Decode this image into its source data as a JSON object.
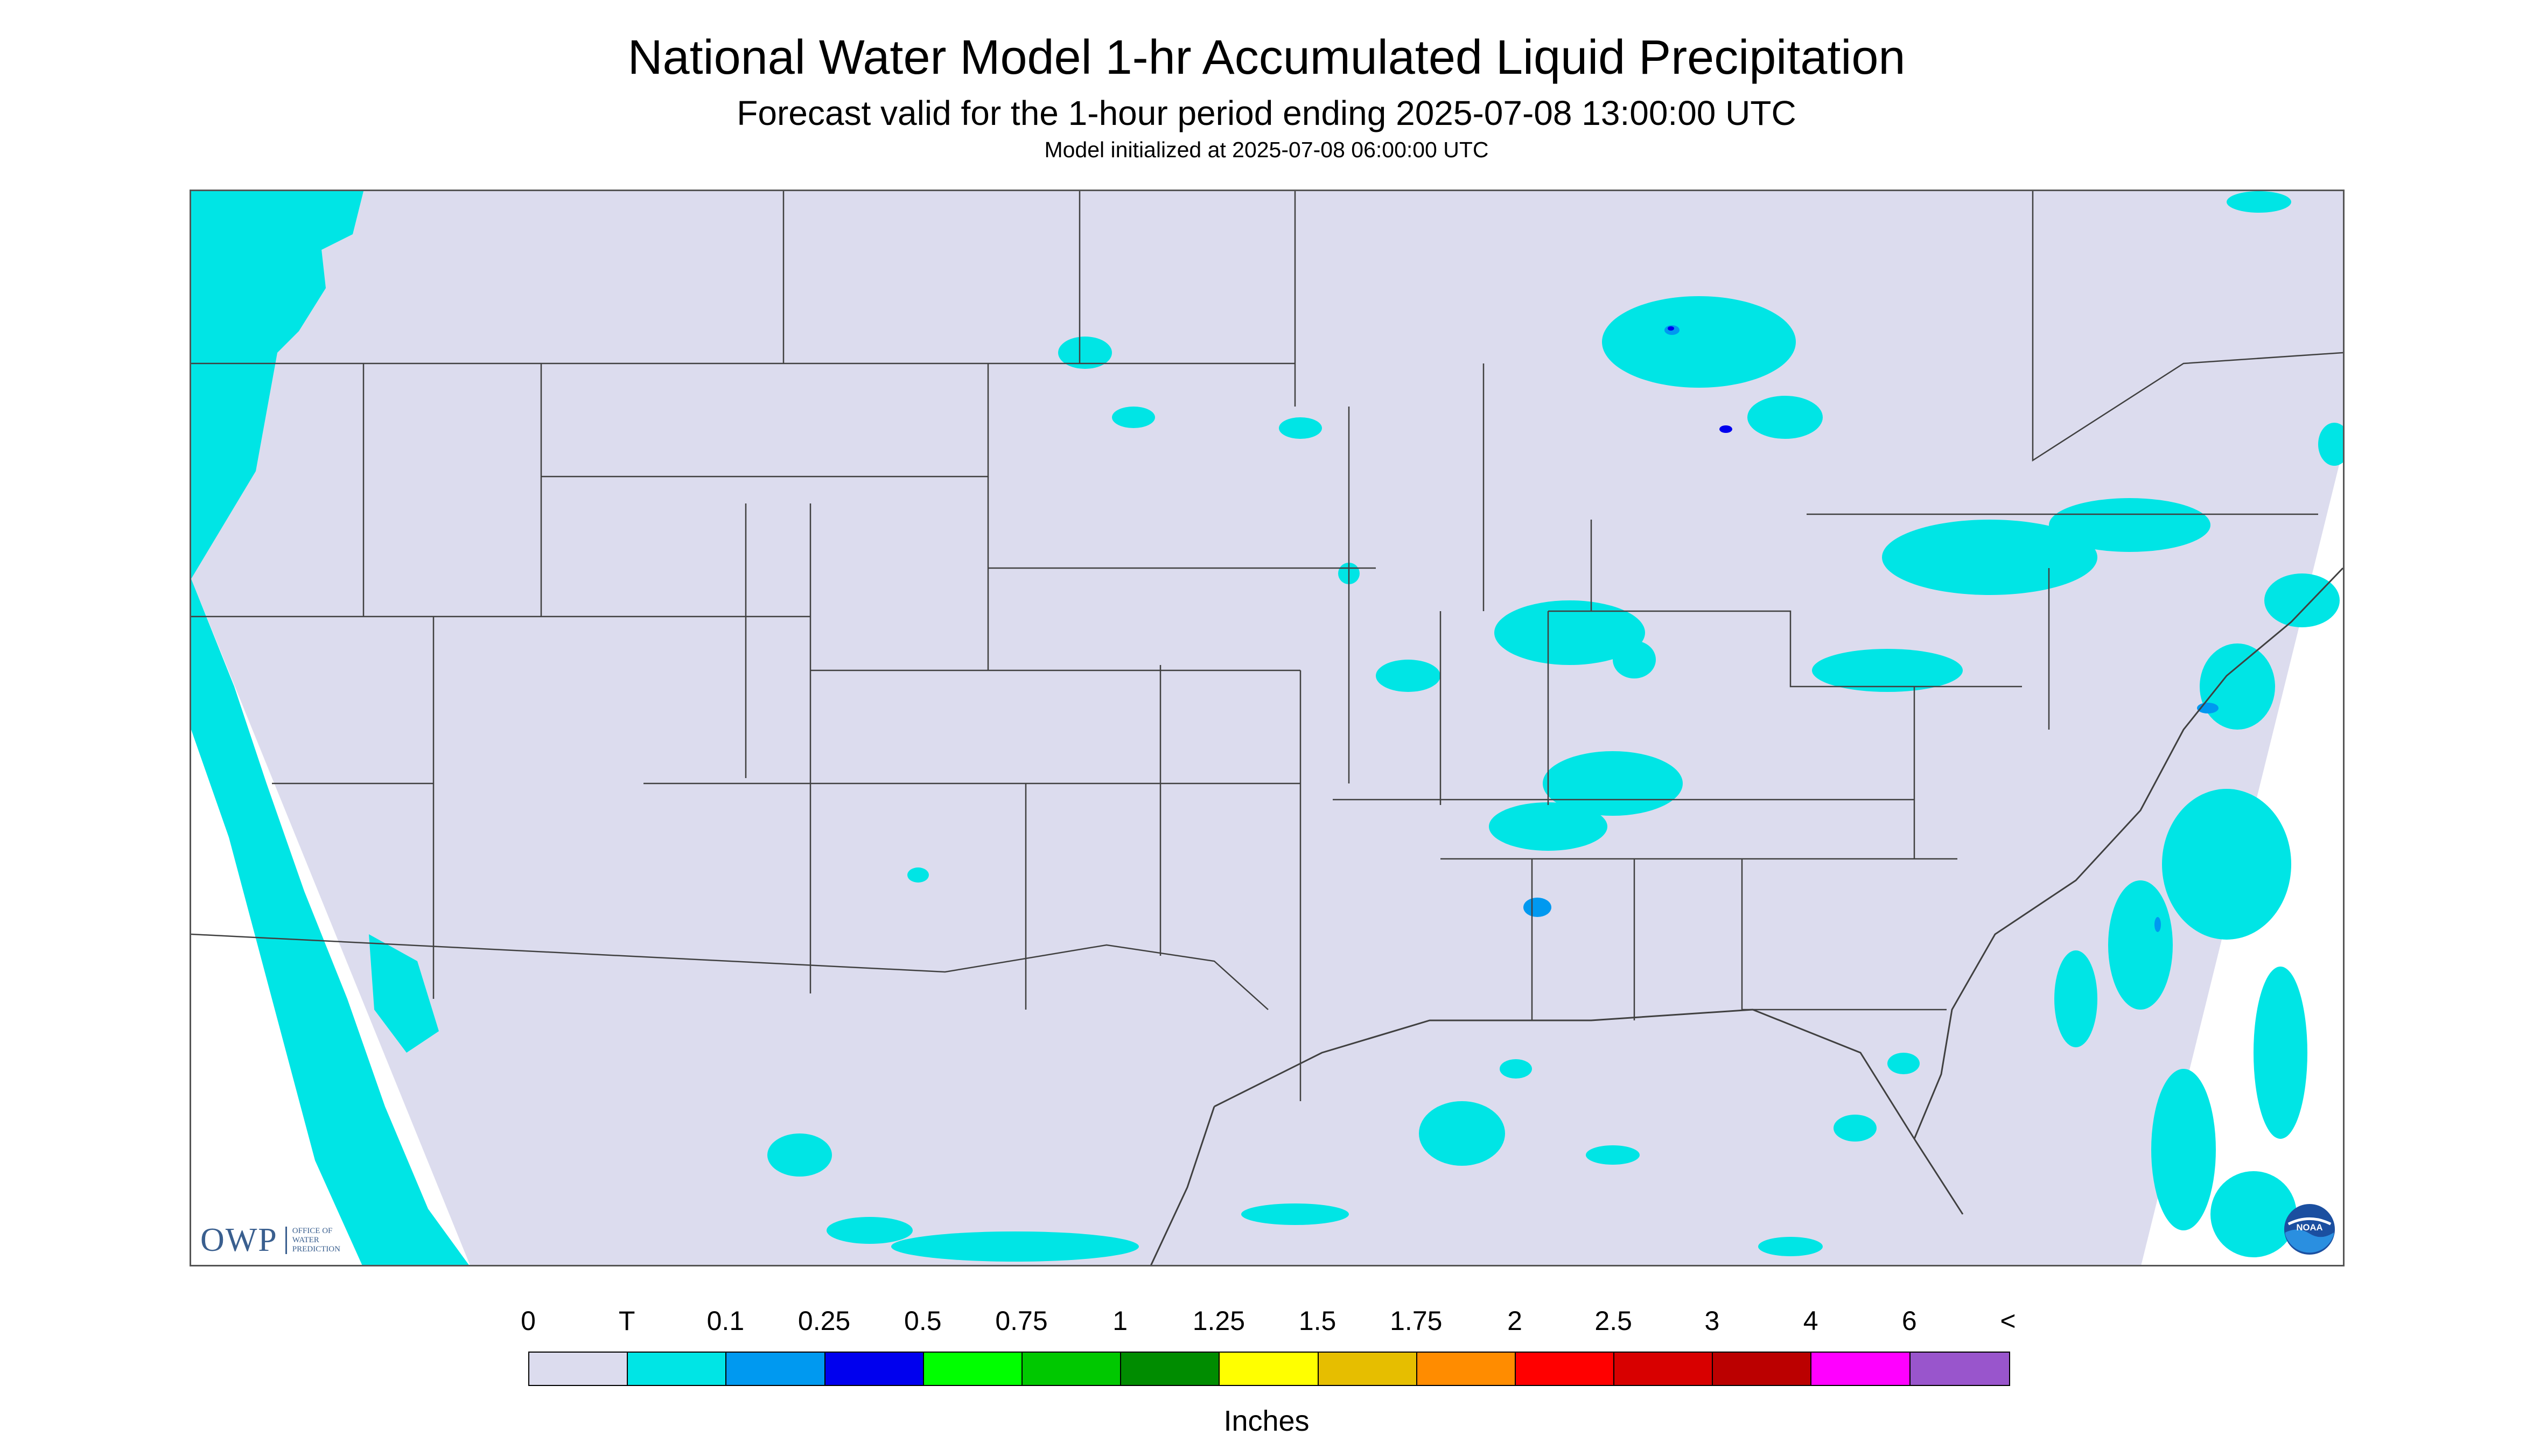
{
  "title": "National Water Model 1-hr Accumulated Liquid Precipitation",
  "subtitle": "Forecast valid for the 1-hour period ending 2025-07-08 13:00:00 UTC",
  "init_line": "Model initialized at 2025-07-08 06:00:00 UTC",
  "logo_left": {
    "text": "OWP",
    "sub": [
      "Office of",
      "Water",
      "Prediction"
    ]
  },
  "logo_right": {
    "icon": "noaa-logo-icon",
    "text": "NOAA"
  },
  "legend": {
    "units": "Inches",
    "tick_labels": [
      "0",
      "T",
      "0.1",
      "0.25",
      "0.5",
      "0.75",
      "1",
      "1.25",
      "1.5",
      "1.75",
      "2",
      "2.5",
      "3",
      "4",
      "6",
      "<"
    ],
    "colors": [
      "#dcdcee",
      "#00e5e5",
      "#0099f0",
      "#0000ee",
      "#00ff00",
      "#00c800",
      "#008c00",
      "#ffff00",
      "#e6be00",
      "#ff8c00",
      "#ff0000",
      "#d80000",
      "#bb0000",
      "#ff00ff",
      "#9955cc"
    ]
  },
  "map": {
    "land_color": "#dcdcee",
    "precip_color": "#00e5e5",
    "precip_mid_color": "#0099f0",
    "precip_high_color": "#0000ee",
    "border_color": "#404040"
  }
}
